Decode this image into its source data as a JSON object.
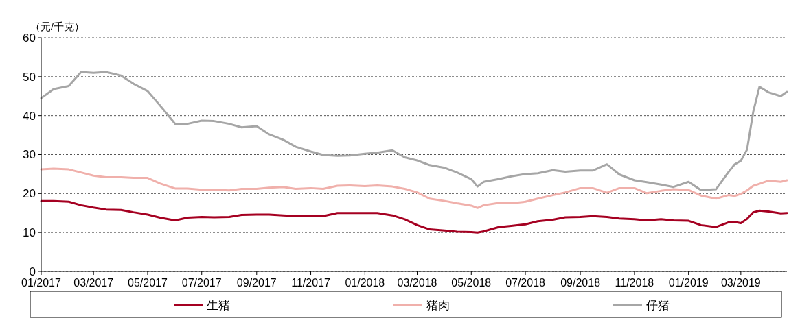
{
  "chart_data": {
    "type": "line",
    "ylabel": "（元/千克）",
    "x": [
      "2017-01-01",
      "2017-01-15",
      "2017-02-01",
      "2017-02-15",
      "2017-03-01",
      "2017-03-15",
      "2017-04-01",
      "2017-04-15",
      "2017-05-01",
      "2017-05-15",
      "2017-06-01",
      "2017-06-15",
      "2017-07-01",
      "2017-07-15",
      "2017-08-01",
      "2017-08-15",
      "2017-09-01",
      "2017-09-15",
      "2017-10-01",
      "2017-10-15",
      "2017-11-01",
      "2017-11-15",
      "2017-12-01",
      "2017-12-15",
      "2018-01-01",
      "2018-01-15",
      "2018-02-01",
      "2018-02-15",
      "2018-03-01",
      "2018-03-15",
      "2018-04-01",
      "2018-04-15",
      "2018-05-01",
      "2018-05-08",
      "2018-05-15",
      "2018-06-01",
      "2018-06-15",
      "2018-07-01",
      "2018-07-15",
      "2018-08-01",
      "2018-08-15",
      "2018-09-01",
      "2018-09-15",
      "2018-10-01",
      "2018-10-15",
      "2018-11-01",
      "2018-11-15",
      "2018-12-01",
      "2018-12-15",
      "2019-01-01",
      "2019-01-15",
      "2019-02-01",
      "2019-02-15",
      "2019-02-22",
      "2019-03-01",
      "2019-03-08",
      "2019-03-15",
      "2019-03-22",
      "2019-04-01",
      "2019-04-15",
      "2019-04-22"
    ],
    "series": [
      {
        "name": "生猪",
        "color": "#a50021",
        "values": [
          18.1,
          18.1,
          17.9,
          17.0,
          16.4,
          15.9,
          15.8,
          15.2,
          14.6,
          13.8,
          13.1,
          13.8,
          14.0,
          13.9,
          14.0,
          14.5,
          14.6,
          14.6,
          14.4,
          14.2,
          14.2,
          14.2,
          15.0,
          15.0,
          15.0,
          15.0,
          14.4,
          13.4,
          11.9,
          10.8,
          10.5,
          10.2,
          10.1,
          10.0,
          10.3,
          11.4,
          11.7,
          12.1,
          12.9,
          13.3,
          13.9,
          14.0,
          14.2,
          14.0,
          13.6,
          13.4,
          13.1,
          13.4,
          13.1,
          13.0,
          11.9,
          11.4,
          12.6,
          12.7,
          12.4,
          13.5,
          15.2,
          15.6,
          15.4,
          14.9,
          15.0
        ]
      },
      {
        "name": "猪肉",
        "color": "#f0b0ab",
        "values": [
          26.2,
          26.4,
          26.2,
          25.4,
          24.6,
          24.2,
          24.2,
          24.0,
          24.0,
          22.6,
          21.3,
          21.3,
          21.0,
          21.0,
          20.8,
          21.2,
          21.2,
          21.5,
          21.7,
          21.2,
          21.4,
          21.2,
          22.0,
          22.1,
          21.9,
          22.1,
          21.8,
          21.2,
          20.3,
          18.7,
          18.1,
          17.5,
          16.9,
          16.3,
          17.0,
          17.6,
          17.5,
          17.9,
          18.7,
          19.6,
          20.3,
          21.4,
          21.4,
          20.2,
          21.4,
          21.4,
          20.1,
          20.7,
          21.1,
          20.9,
          19.5,
          18.7,
          19.6,
          19.4,
          19.9,
          20.8,
          22.0,
          22.5,
          23.3,
          23.0,
          23.4
        ]
      },
      {
        "name": "仔猪",
        "color": "#a6a6a6",
        "values": [
          44.5,
          46.8,
          47.6,
          51.2,
          51.0,
          51.2,
          50.3,
          48.2,
          46.3,
          42.6,
          37.9,
          37.9,
          38.7,
          38.6,
          37.9,
          37.0,
          37.3,
          35.2,
          33.8,
          32.0,
          30.8,
          29.9,
          29.7,
          29.8,
          30.2,
          30.5,
          31.1,
          29.3,
          28.5,
          27.3,
          26.6,
          25.4,
          23.7,
          21.8,
          23.0,
          23.7,
          24.4,
          25.0,
          25.2,
          26.0,
          25.6,
          25.9,
          25.9,
          27.5,
          24.9,
          23.4,
          22.9,
          22.3,
          21.7,
          23.0,
          20.9,
          21.1,
          25.5,
          27.5,
          28.4,
          31.3,
          41.0,
          47.4,
          46.0,
          45.0,
          46.1
        ]
      }
    ],
    "xlim": [
      "2017-01-01",
      "2019-04-22"
    ],
    "xticks": [
      {
        "value": "2017-01-01",
        "label": "01/2017"
      },
      {
        "value": "2017-03-01",
        "label": "03/2017"
      },
      {
        "value": "2017-05-01",
        "label": "05/2017"
      },
      {
        "value": "2017-07-01",
        "label": "07/2017"
      },
      {
        "value": "2017-09-01",
        "label": "09/2017"
      },
      {
        "value": "2017-11-01",
        "label": "11/2017"
      },
      {
        "value": "2018-01-01",
        "label": "01/2018"
      },
      {
        "value": "2018-03-01",
        "label": "03/2018"
      },
      {
        "value": "2018-05-01",
        "label": "05/2018"
      },
      {
        "value": "2018-07-01",
        "label": "07/2018"
      },
      {
        "value": "2018-09-01",
        "label": "09/2018"
      },
      {
        "value": "2018-11-01",
        "label": "11/2018"
      },
      {
        "value": "2019-01-01",
        "label": "01/2019"
      },
      {
        "value": "2019-03-01",
        "label": "03/2019"
      }
    ],
    "ylim": [
      0,
      60
    ],
    "yticks": [
      0,
      10,
      20,
      30,
      40,
      50,
      60
    ],
    "grid": "y",
    "legend": "bottom",
    "marker": "none",
    "line_style": "solid"
  }
}
